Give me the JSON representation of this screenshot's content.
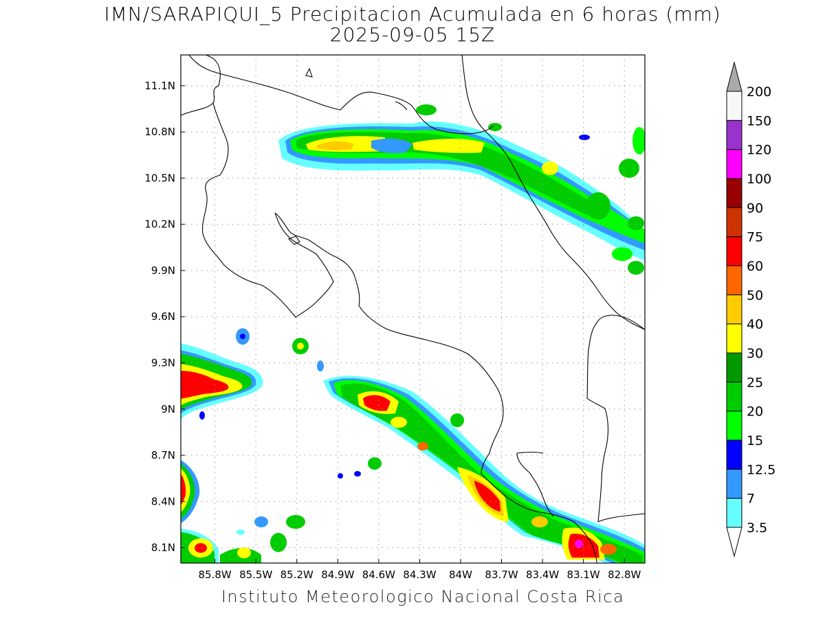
{
  "title": {
    "line1": "IMN/SARAPIQUI_5 Precipitacion Acumulada en 6 horas (mm)",
    "line2": "2025-09-05 15Z"
  },
  "credit": "Instituto Meteorologico Nacional Costa Rica",
  "map": {
    "lon_range": [
      -86.05,
      -82.65
    ],
    "lat_range": [
      8.0,
      11.3
    ],
    "lon_ticks": [
      {
        "value": -85.8,
        "label": "85.8W"
      },
      {
        "value": -85.5,
        "label": "85.5W"
      },
      {
        "value": -85.2,
        "label": "85.2W"
      },
      {
        "value": -84.9,
        "label": "84.9W"
      },
      {
        "value": -84.6,
        "label": "84.6W"
      },
      {
        "value": -84.3,
        "label": "84.3W"
      },
      {
        "value": -84.0,
        "label": "84W"
      },
      {
        "value": -83.7,
        "label": "83.7W"
      },
      {
        "value": -83.4,
        "label": "83.4W"
      },
      {
        "value": -83.1,
        "label": "83.1W"
      },
      {
        "value": -82.8,
        "label": "82.8W"
      }
    ],
    "lat_ticks": [
      {
        "value": 8.1,
        "label": "8.1N"
      },
      {
        "value": 8.4,
        "label": "8.4N"
      },
      {
        "value": 8.7,
        "label": "8.7N"
      },
      {
        "value": 9.0,
        "label": "9N"
      },
      {
        "value": 9.3,
        "label": "9.3N"
      },
      {
        "value": 9.6,
        "label": "9.6N"
      },
      {
        "value": 9.9,
        "label": "9.9N"
      },
      {
        "value": 10.2,
        "label": "10.2N"
      },
      {
        "value": 10.5,
        "label": "10.5N"
      },
      {
        "value": 10.8,
        "label": "10.8N"
      },
      {
        "value": 11.1,
        "label": "11.1N"
      }
    ],
    "grid": true
  },
  "colorbar": {
    "levels": [
      {
        "label": "3.5",
        "color": "#66ffff"
      },
      {
        "label": "7",
        "color": "#3399ff"
      },
      {
        "label": "12.5",
        "color": "#0000ff"
      },
      {
        "label": "15",
        "color": "#00ff00"
      },
      {
        "label": "20",
        "color": "#00cc00"
      },
      {
        "label": "25",
        "color": "#009900"
      },
      {
        "label": "30",
        "color": "#ffff00"
      },
      {
        "label": "40",
        "color": "#ffcc00"
      },
      {
        "label": "50",
        "color": "#ff6600"
      },
      {
        "label": "60",
        "color": "#ff0000"
      },
      {
        "label": "75",
        "color": "#cc3300"
      },
      {
        "label": "90",
        "color": "#990000"
      },
      {
        "label": "100",
        "color": "#ff00ff"
      },
      {
        "label": "120",
        "color": "#9933cc"
      },
      {
        "label": "150",
        "color": "#f8f8f8"
      },
      {
        "label": "200",
        "color": "#aaaaaa"
      }
    ]
  }
}
